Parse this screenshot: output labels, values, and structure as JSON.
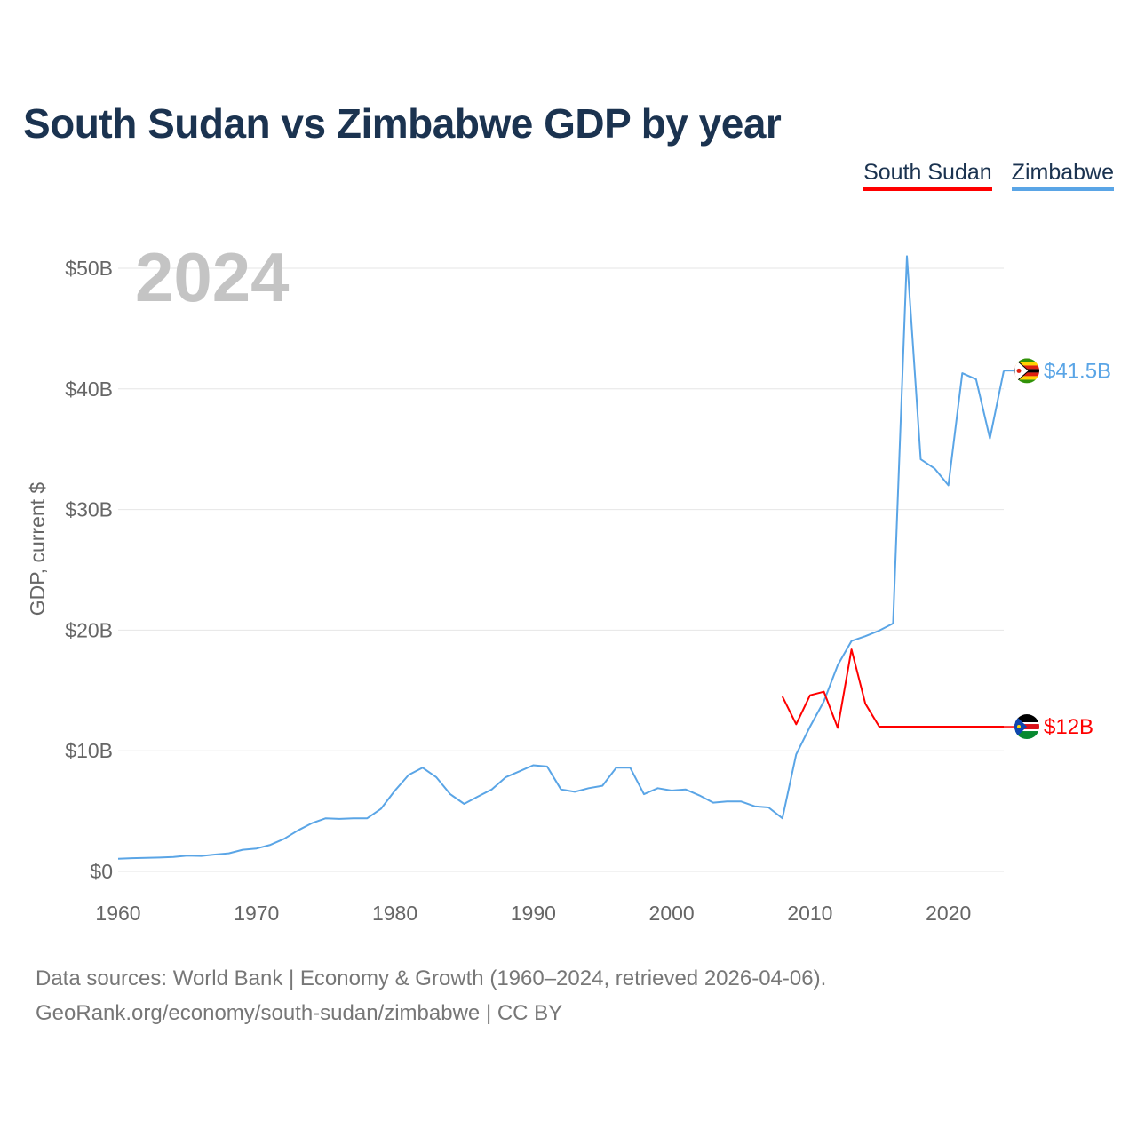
{
  "title": "South Sudan vs Zimbabwe GDP by year",
  "legend": [
    {
      "label": "South Sudan",
      "color": "#ff0000"
    },
    {
      "label": "Zimbabwe",
      "color": "#5aa5e6"
    }
  ],
  "year_display": "2024",
  "source": {
    "line1": "Data sources: World Bank | Economy & Growth (1960–2024, retrieved 2026-04-06).",
    "line2": "GeoRank.org/economy/south-sudan/zimbabwe | CC BY"
  },
  "chart_data": {
    "type": "line",
    "title": "South Sudan vs Zimbabwe GDP by year",
    "xlabel": "",
    "ylabel": "GDP, current $",
    "xlim": [
      1960,
      2024
    ],
    "ylim": [
      0,
      50
    ],
    "x_ticks": [
      1960,
      1970,
      1980,
      1990,
      2000,
      2010,
      2020
    ],
    "x_tick_labels": [
      "1960",
      "1970",
      "1980",
      "1990",
      "2000",
      "2010",
      "2020"
    ],
    "y_ticks": [
      0,
      10,
      20,
      30,
      40,
      50
    ],
    "y_tick_labels": [
      "$0",
      "$10B",
      "$20B",
      "$30B",
      "$40B",
      "$50B"
    ],
    "series": [
      {
        "name": "Zimbabwe",
        "color": "#5aa5e6",
        "end_label": "$41.5B",
        "flag_icon": "zimbabwe-flag-icon",
        "x": [
          1960,
          1961,
          1962,
          1963,
          1964,
          1965,
          1966,
          1967,
          1968,
          1969,
          1970,
          1971,
          1972,
          1973,
          1974,
          1975,
          1976,
          1977,
          1978,
          1979,
          1980,
          1981,
          1982,
          1983,
          1984,
          1985,
          1986,
          1987,
          1988,
          1989,
          1990,
          1991,
          1992,
          1993,
          1994,
          1995,
          1996,
          1997,
          1998,
          1999,
          2000,
          2001,
          2002,
          2003,
          2004,
          2005,
          2006,
          2007,
          2008,
          2009,
          2010,
          2011,
          2012,
          2013,
          2014,
          2015,
          2016,
          2017,
          2018,
          2019,
          2020,
          2021,
          2022,
          2023,
          2024
        ],
        "values": [
          1.05,
          1.1,
          1.12,
          1.15,
          1.2,
          1.3,
          1.28,
          1.4,
          1.5,
          1.8,
          1.9,
          2.2,
          2.7,
          3.4,
          4.0,
          4.4,
          4.35,
          4.4,
          4.4,
          5.2,
          6.7,
          8.0,
          8.6,
          7.8,
          6.4,
          5.6,
          6.2,
          6.8,
          7.8,
          8.3,
          8.8,
          8.7,
          6.8,
          6.6,
          6.9,
          7.1,
          8.6,
          8.6,
          6.4,
          6.9,
          6.7,
          6.8,
          6.3,
          5.7,
          5.8,
          5.8,
          5.4,
          5.3,
          4.4,
          9.7,
          12.0,
          14.1,
          17.1,
          19.1,
          19.5,
          19.96,
          20.55,
          51.0,
          34.16,
          33.4,
          32.0,
          41.3,
          40.8,
          35.9,
          41.5
        ]
      },
      {
        "name": "South Sudan",
        "color": "#ff0000",
        "end_label": "$12B",
        "flag_icon": "south-sudan-flag-icon",
        "x": [
          2008,
          2009,
          2010,
          2011,
          2012,
          2013,
          2014,
          2015,
          2016,
          2017,
          2018,
          2019,
          2020,
          2021,
          2022,
          2023,
          2024
        ],
        "values": [
          14.5,
          12.2,
          14.6,
          14.9,
          11.9,
          18.4,
          13.9,
          12.0,
          12.0,
          12.0,
          12.0,
          12.0,
          12.0,
          12.0,
          12.0,
          12.0,
          12.0
        ]
      }
    ]
  }
}
